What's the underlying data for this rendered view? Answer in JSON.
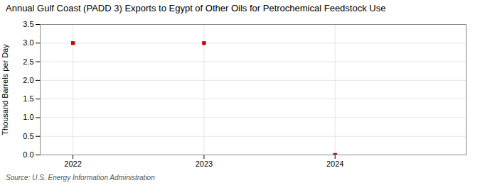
{
  "chart_data": {
    "type": "scatter",
    "title": "Annual Gulf Coast (PADD 3) Exports to Egypt of Other Oils for Petrochemical Feedstock Use",
    "ylabel": "Thousand Barrels per Day",
    "source": "Source: U.S. Energy Information Administration",
    "x": [
      2022,
      2023,
      2024
    ],
    "values": [
      3.0,
      3.0,
      0.0
    ],
    "color": "#cc0000",
    "marker": "square",
    "xlim": [
      2021.75,
      2025.0
    ],
    "xticks": [
      2022,
      2023,
      2024
    ],
    "ylim": [
      0.0,
      3.5
    ],
    "yticks": [
      {
        "value": 0.0,
        "label": "0.0"
      },
      0.5,
      {
        "value": 1.0,
        "label": "1.0"
      },
      1.5,
      {
        "value": 2.0,
        "label": "2.0"
      },
      2.5,
      {
        "value": 3.0,
        "label": "3.0"
      },
      3.5
    ],
    "grid": true
  }
}
